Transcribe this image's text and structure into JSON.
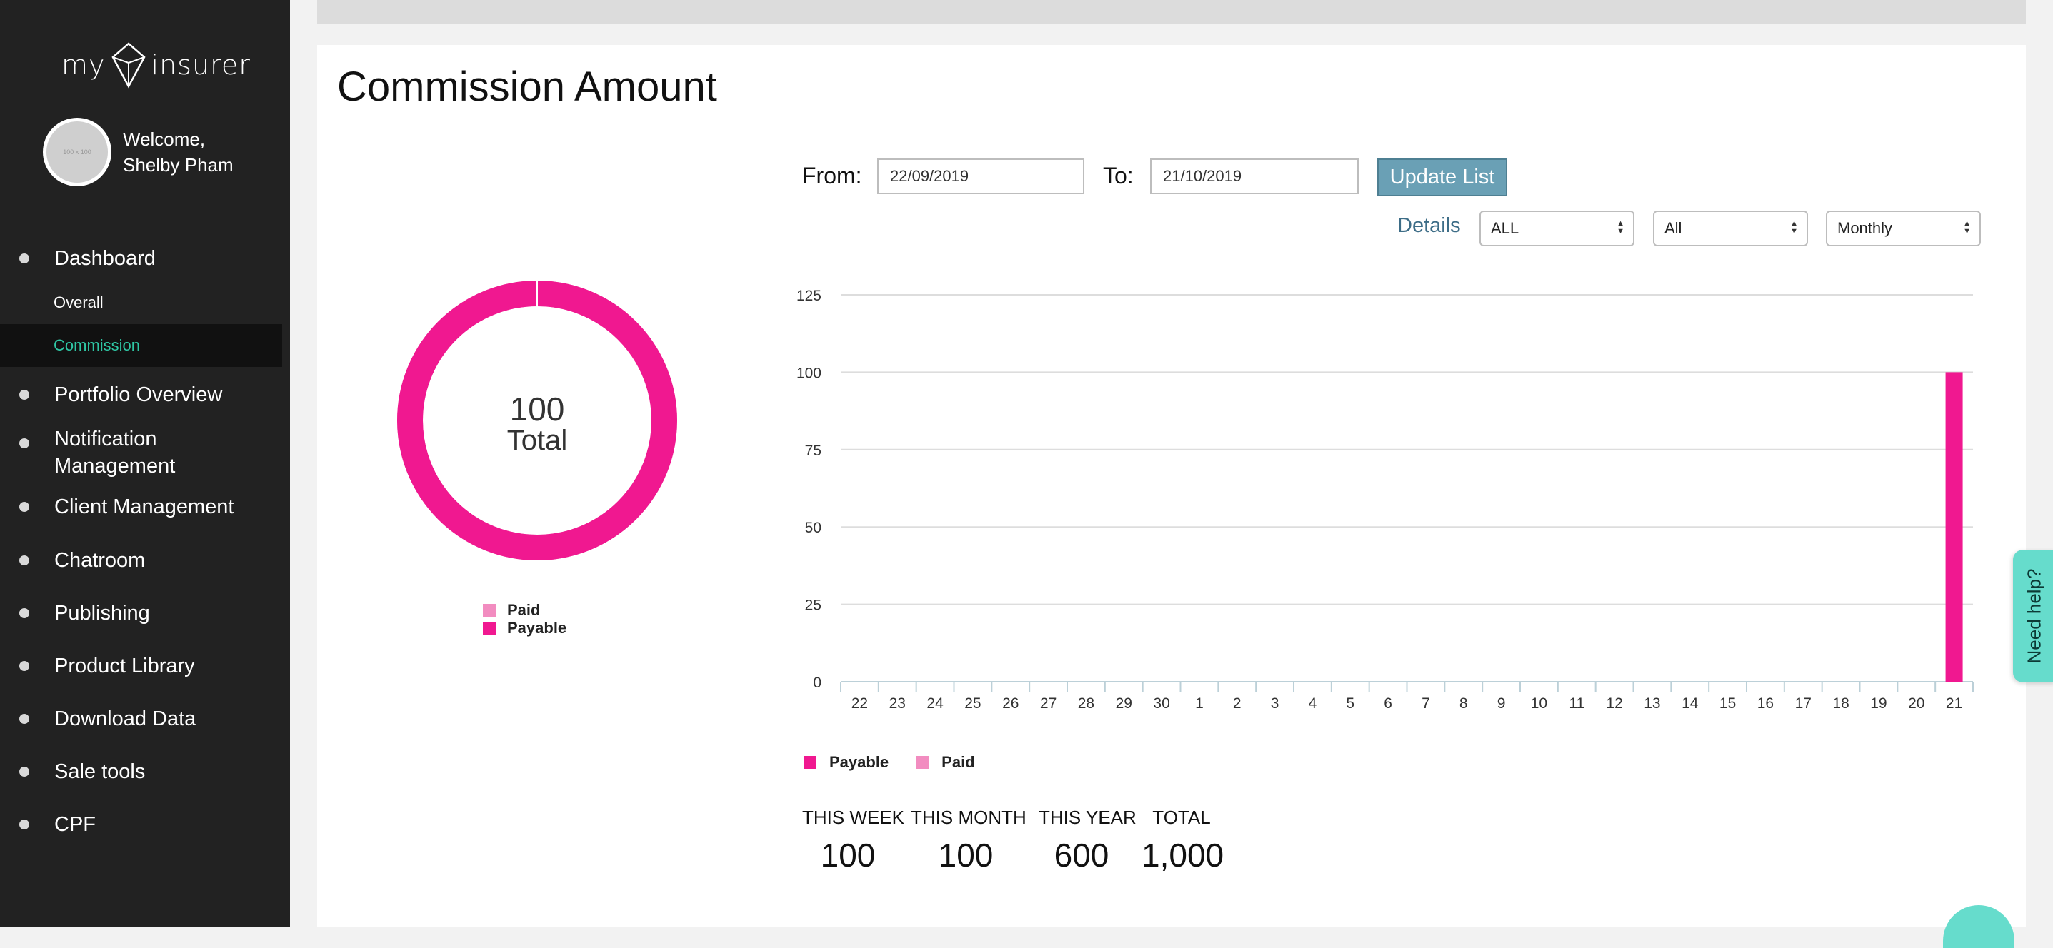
{
  "brand": {
    "text_left": "my",
    "text_right": "insurer",
    "icon": "diamond-logo-icon"
  },
  "user": {
    "welcome": "Welcome,",
    "name": "Shelby Pham",
    "avatar_placeholder": "100 x 100"
  },
  "nav": {
    "dashboard": "Dashboard",
    "overall": "Overall",
    "commission": "Commission",
    "portfolio": "Portfolio Overview",
    "notification_1": "Notification",
    "notification_2": "Management",
    "client": "Client Management",
    "chatroom": "Chatroom",
    "publishing": "Publishing",
    "product_library": "Product Library",
    "download": "Download Data",
    "sale_tools": "Sale tools",
    "cpf": "CPF"
  },
  "page": {
    "title": "Commission Amount"
  },
  "filters": {
    "from_label": "From:",
    "from_value": "22/09/2019",
    "to_label": "To:",
    "to_value": "21/10/2019",
    "update_button": "Update List",
    "details_label": "Details",
    "select1": "ALL",
    "select2": "All",
    "select3": "Monthly"
  },
  "donut": {
    "value": "100",
    "label": "Total",
    "legend": [
      {
        "name": "Paid",
        "color": "#f28cc0"
      },
      {
        "name": "Payable",
        "color": "#f01890"
      }
    ],
    "paid_value": 0,
    "payable_value": 100
  },
  "colors": {
    "payable": "#f01890",
    "paid": "#f28cc0",
    "accent": "#2fc6a4",
    "button": "#6aa0b5"
  },
  "chart_data": {
    "type": "bar",
    "categories": [
      "22",
      "23",
      "24",
      "25",
      "26",
      "27",
      "28",
      "29",
      "30",
      "1",
      "2",
      "3",
      "4",
      "5",
      "6",
      "7",
      "8",
      "9",
      "10",
      "11",
      "12",
      "13",
      "14",
      "15",
      "16",
      "17",
      "18",
      "19",
      "20",
      "21"
    ],
    "series": [
      {
        "name": "Payable",
        "values": [
          0,
          0,
          0,
          0,
          0,
          0,
          0,
          0,
          0,
          0,
          0,
          0,
          0,
          0,
          0,
          0,
          0,
          0,
          0,
          0,
          0,
          0,
          0,
          0,
          0,
          0,
          0,
          0,
          0,
          100
        ]
      },
      {
        "name": "Paid",
        "values": [
          0,
          0,
          0,
          0,
          0,
          0,
          0,
          0,
          0,
          0,
          0,
          0,
          0,
          0,
          0,
          0,
          0,
          0,
          0,
          0,
          0,
          0,
          0,
          0,
          0,
          0,
          0,
          0,
          0,
          0
        ]
      }
    ],
    "yticks": [
      0,
      25,
      50,
      75,
      100,
      125
    ],
    "ylim": [
      0,
      125
    ],
    "grid": true,
    "legend_position": "bottom-left"
  },
  "stats": {
    "week_label": "THIS WEEK",
    "week_value": "100",
    "month_label": "THIS MONTH",
    "month_value": "100",
    "year_label": "THIS YEAR",
    "year_value": "600",
    "total_label": "TOTAL",
    "total_value": "1,000"
  },
  "help": {
    "label": "Need help?"
  }
}
